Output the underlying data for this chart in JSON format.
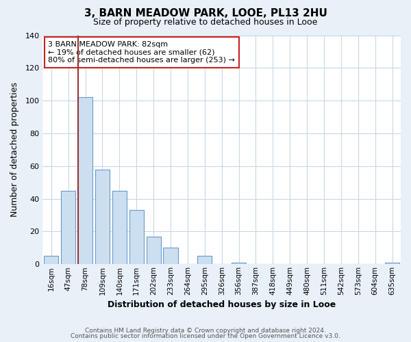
{
  "title": "3, BARN MEADOW PARK, LOOE, PL13 2HU",
  "subtitle": "Size of property relative to detached houses in Looe",
  "xlabel": "Distribution of detached houses by size in Looe",
  "ylabel": "Number of detached properties",
  "bar_labels": [
    "16sqm",
    "47sqm",
    "78sqm",
    "109sqm",
    "140sqm",
    "171sqm",
    "202sqm",
    "233sqm",
    "264sqm",
    "295sqm",
    "326sqm",
    "356sqm",
    "387sqm",
    "418sqm",
    "449sqm",
    "480sqm",
    "511sqm",
    "542sqm",
    "573sqm",
    "604sqm",
    "635sqm"
  ],
  "bar_values": [
    5,
    45,
    102,
    58,
    45,
    33,
    17,
    10,
    0,
    5,
    0,
    1,
    0,
    0,
    0,
    0,
    0,
    0,
    0,
    0,
    1
  ],
  "bar_fill_color": "#ccdff0",
  "bar_edge_color": "#6699cc",
  "vline_x_index": 2,
  "vline_color": "#993333",
  "ylim": [
    0,
    140
  ],
  "yticks": [
    0,
    20,
    40,
    60,
    80,
    100,
    120,
    140
  ],
  "annotation_title": "3 BARN MEADOW PARK: 82sqm",
  "annotation_line1": "← 19% of detached houses are smaller (62)",
  "annotation_line2": "80% of semi-detached houses are larger (253) →",
  "annotation_box_color": "#ffffff",
  "annotation_box_edge": "#cc2222",
  "footer_line1": "Contains HM Land Registry data © Crown copyright and database right 2024.",
  "footer_line2": "Contains public sector information licensed under the Open Government Licence v3.0.",
  "background_color": "#e8f0f8",
  "plot_background_color": "#ffffff",
  "grid_color": "#c8d8e8",
  "title_fontsize": 11,
  "subtitle_fontsize": 9
}
